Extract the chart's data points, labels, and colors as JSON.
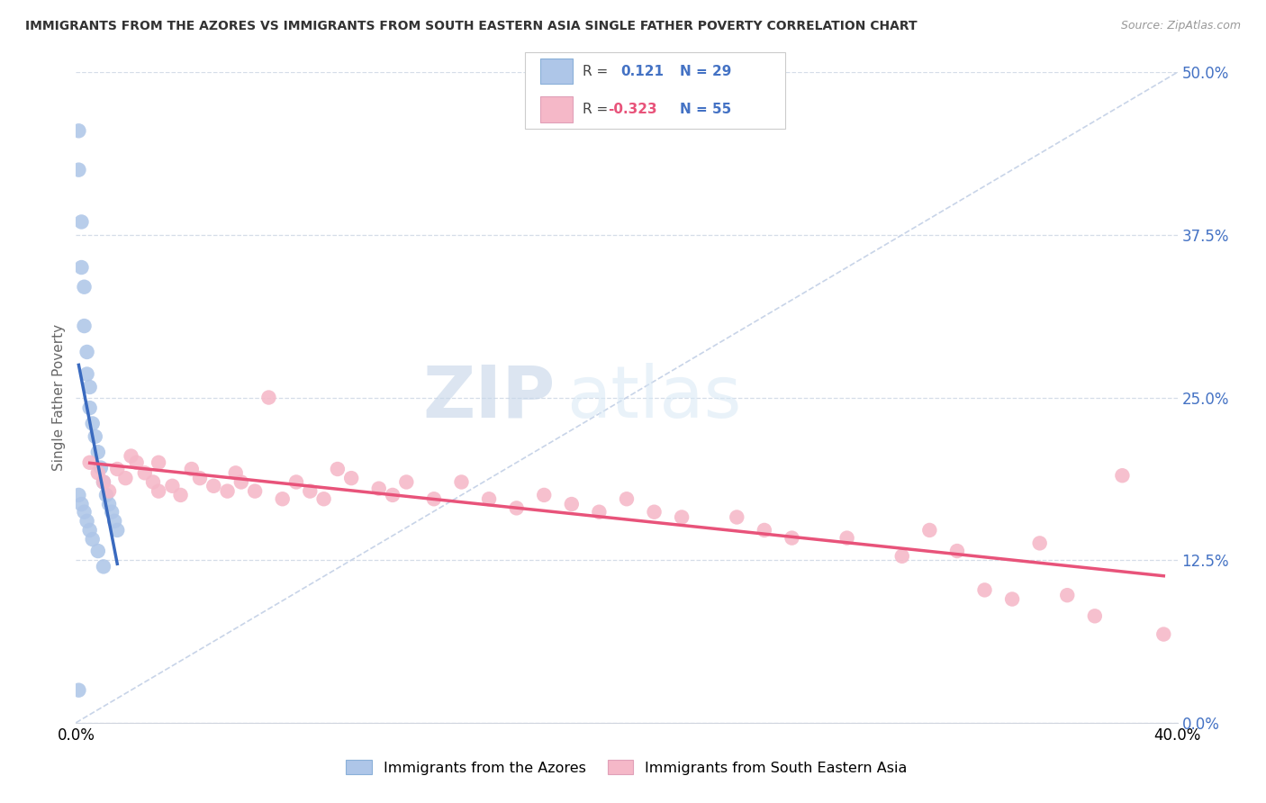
{
  "title": "IMMIGRANTS FROM THE AZORES VS IMMIGRANTS FROM SOUTH EASTERN ASIA SINGLE FATHER POVERTY CORRELATION CHART",
  "source": "Source: ZipAtlas.com",
  "ylabel": "Single Father Poverty",
  "ytick_labels": [
    "0.0%",
    "12.5%",
    "25.0%",
    "37.5%",
    "50.0%"
  ],
  "ytick_values": [
    0.0,
    0.125,
    0.25,
    0.375,
    0.5
  ],
  "xlim": [
    0.0,
    0.4
  ],
  "ylim": [
    0.0,
    0.5
  ],
  "watermark_zip": "ZIP",
  "watermark_atlas": "atlas",
  "blue_color": "#aec6e8",
  "blue_line_color": "#3a6abf",
  "pink_color": "#f5b8c8",
  "pink_line_color": "#e8537a",
  "ref_line_color": "#c8d4e8",
  "blue_x": [
    0.001,
    0.001,
    0.002,
    0.002,
    0.003,
    0.003,
    0.004,
    0.004,
    0.005,
    0.005,
    0.006,
    0.007,
    0.008,
    0.009,
    0.01,
    0.011,
    0.012,
    0.013,
    0.014,
    0.015,
    0.001,
    0.002,
    0.003,
    0.004,
    0.005,
    0.006,
    0.008,
    0.01,
    0.001
  ],
  "blue_y": [
    0.455,
    0.425,
    0.385,
    0.35,
    0.335,
    0.305,
    0.285,
    0.268,
    0.258,
    0.242,
    0.23,
    0.22,
    0.208,
    0.196,
    0.185,
    0.175,
    0.168,
    0.162,
    0.155,
    0.148,
    0.175,
    0.168,
    0.162,
    0.155,
    0.148,
    0.141,
    0.132,
    0.12,
    0.025
  ],
  "pink_x": [
    0.005,
    0.008,
    0.01,
    0.012,
    0.015,
    0.018,
    0.02,
    0.022,
    0.025,
    0.028,
    0.03,
    0.03,
    0.035,
    0.038,
    0.042,
    0.045,
    0.05,
    0.055,
    0.058,
    0.06,
    0.065,
    0.07,
    0.075,
    0.08,
    0.085,
    0.09,
    0.095,
    0.1,
    0.11,
    0.115,
    0.12,
    0.13,
    0.14,
    0.15,
    0.16,
    0.17,
    0.18,
    0.19,
    0.2,
    0.21,
    0.22,
    0.24,
    0.25,
    0.26,
    0.28,
    0.3,
    0.31,
    0.32,
    0.33,
    0.34,
    0.35,
    0.36,
    0.37,
    0.38,
    0.395
  ],
  "pink_y": [
    0.2,
    0.192,
    0.185,
    0.178,
    0.195,
    0.188,
    0.205,
    0.2,
    0.192,
    0.185,
    0.2,
    0.178,
    0.182,
    0.175,
    0.195,
    0.188,
    0.182,
    0.178,
    0.192,
    0.185,
    0.178,
    0.25,
    0.172,
    0.185,
    0.178,
    0.172,
    0.195,
    0.188,
    0.18,
    0.175,
    0.185,
    0.172,
    0.185,
    0.172,
    0.165,
    0.175,
    0.168,
    0.162,
    0.172,
    0.162,
    0.158,
    0.158,
    0.148,
    0.142,
    0.142,
    0.128,
    0.148,
    0.132,
    0.102,
    0.095,
    0.138,
    0.098,
    0.082,
    0.19,
    0.068
  ]
}
